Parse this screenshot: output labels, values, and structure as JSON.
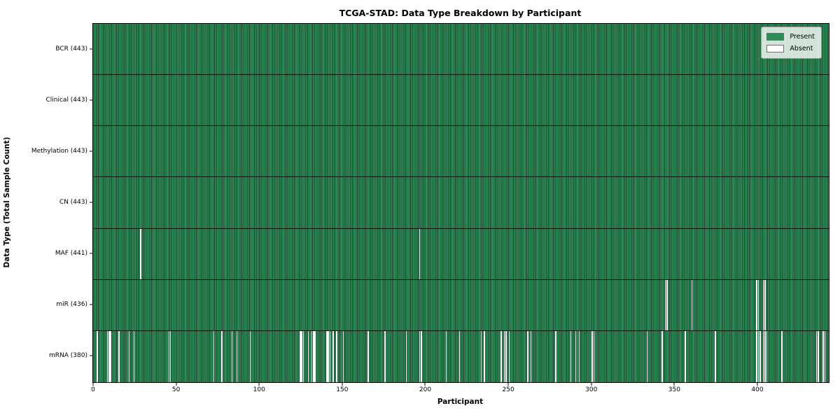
{
  "chart_data": {
    "type": "heatmap",
    "title": "TCGA-STAD: Data Type Breakdown by Participant",
    "xlabel": "Participant",
    "ylabel": "Data Type (Total Sample Count)",
    "x_range": [
      0,
      443
    ],
    "x_ticks": [
      0,
      50,
      100,
      150,
      200,
      250,
      300,
      350,
      400
    ],
    "n_participants": 443,
    "grid": false,
    "legend_position": "upper right",
    "legend": [
      {
        "label": "Present",
        "color": "#2e8b57"
      },
      {
        "label": "Absent",
        "color": "#ffffff"
      }
    ],
    "colors": {
      "present": "#2e8b57",
      "bar_edge": "rgba(0,0,0,0.5)",
      "absent": "#ffffff"
    },
    "rows": [
      {
        "label": "BCR (443)",
        "data_type": "BCR",
        "present_count": 443,
        "absent_indices": []
      },
      {
        "label": "Clinical (443)",
        "data_type": "Clinical",
        "present_count": 443,
        "absent_indices": []
      },
      {
        "label": "Methylation (443)",
        "data_type": "Methylation",
        "present_count": 443,
        "absent_indices": []
      },
      {
        "label": "CN (443)",
        "data_type": "CN",
        "present_count": 443,
        "absent_indices": []
      },
      {
        "label": "MAF (441)",
        "data_type": "MAF",
        "present_count": 441,
        "absent_indices": [
          28,
          196
        ]
      },
      {
        "label": "miR (436)",
        "data_type": "miR",
        "present_count": 436,
        "absent_indices": [
          344,
          345,
          360,
          399,
          400,
          403,
          404
        ]
      },
      {
        "label": "mRNA (380)",
        "data_type": "mRNA",
        "present_count": 380,
        "absent_indices": [
          2,
          8,
          9,
          10,
          15,
          21,
          24,
          45,
          46,
          72,
          77,
          83,
          86,
          94,
          124,
          125,
          126,
          129,
          131,
          132,
          133,
          140,
          141,
          142,
          144,
          146,
          150,
          165,
          175,
          188,
          196,
          197,
          212,
          220,
          233,
          235,
          245,
          247,
          248,
          250,
          261,
          263,
          278,
          287,
          290,
          292,
          300,
          301,
          333,
          342,
          356,
          374,
          399,
          400,
          401,
          403,
          404,
          405,
          414,
          435,
          436,
          439,
          440
        ]
      }
    ]
  }
}
